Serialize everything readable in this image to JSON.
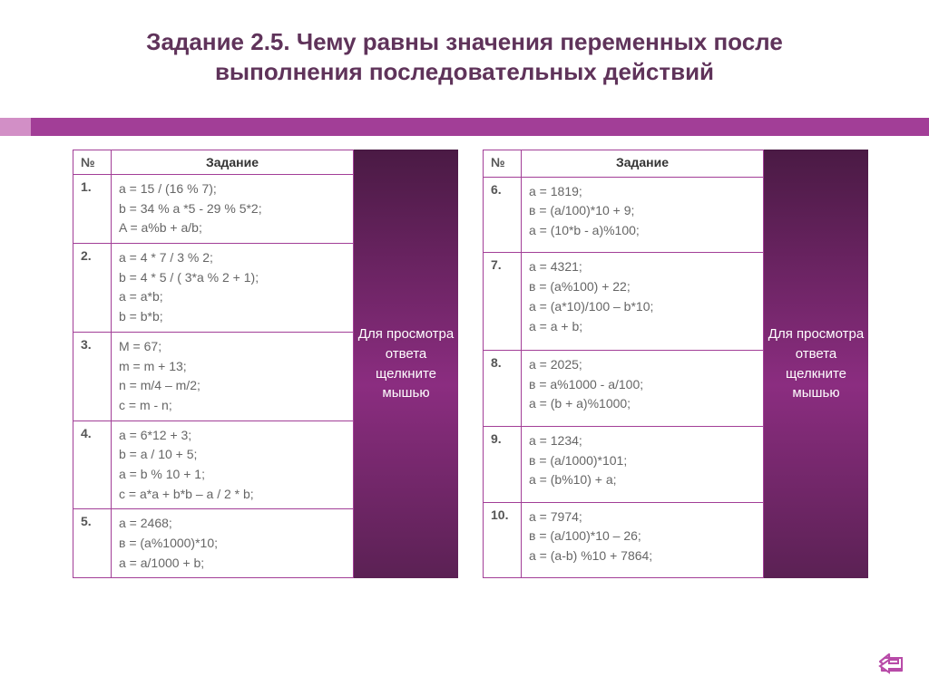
{
  "title": "Задание 2.5. Чему равны значения переменных после выполнения последовательных действий",
  "headers": {
    "num": "№",
    "task": "Задание"
  },
  "answer_panel_text": "Для просмотра ответа щелкните мышью",
  "colors": {
    "title": "#5f335a",
    "accent_dark": "#a23e97",
    "accent_light": "#d28fc6",
    "panel_grad_top": "#4a1a44",
    "panel_grad_mid": "#8b2d80",
    "panel_grad_bot": "#5b2154",
    "border": "#a23e97",
    "text_gray": "#666666",
    "return_btn": "#b84ba8"
  },
  "left_rows": [
    {
      "n": "1.",
      "lines": [
        "a = 15 / (16 % 7);",
        "b = 34 % a *5 - 29 % 5*2;",
        "A = a%b + a/b;"
      ]
    },
    {
      "n": "2.",
      "lines": [
        "a = 4 * 7 / 3 % 2;",
        "b = 4 * 5 / ( 3*a % 2 + 1);",
        "a = a*b;",
        "b = b*b;"
      ]
    },
    {
      "n": "3.",
      "lines": [
        "M = 67;",
        "m = m + 13;",
        "n = m/4 – m/2;",
        "c = m - n;"
      ]
    },
    {
      "n": "4.",
      "lines": [
        "a = 6*12 + 3;",
        "b = a / 10 + 5;",
        "a = b % 10 + 1;",
        "c = a*a + b*b – a / 2 * b;"
      ]
    },
    {
      "n": "5.",
      "lines": [
        "a = 2468;",
        "в = (a%1000)*10;",
        "a = a/1000 + b;"
      ]
    }
  ],
  "right_rows": [
    {
      "n": "6.",
      "lines": [
        "a = 1819;",
        "в = (a/100)*10 + 9;",
        "a = (10*b - a)%100;"
      ]
    },
    {
      "n": "7.",
      "lines": [
        "a = 4321;",
        "в = (a%100) + 22;",
        "a = (a*10)/100 – b*10;",
        "a = a + b;"
      ]
    },
    {
      "n": "8.",
      "lines": [
        "a = 2025;",
        "в = a%1000 - a/100;",
        "a = (b + a)%1000;"
      ]
    },
    {
      "n": "9.",
      "lines": [
        "a = 1234;",
        "в = (a/1000)*101;",
        "a = (b%10) + a;"
      ]
    },
    {
      "n": "10.",
      "lines": [
        "a = 7974;",
        "в = (a/100)*10 – 26;",
        "a = (a-b) %10 + 7864;"
      ]
    }
  ]
}
